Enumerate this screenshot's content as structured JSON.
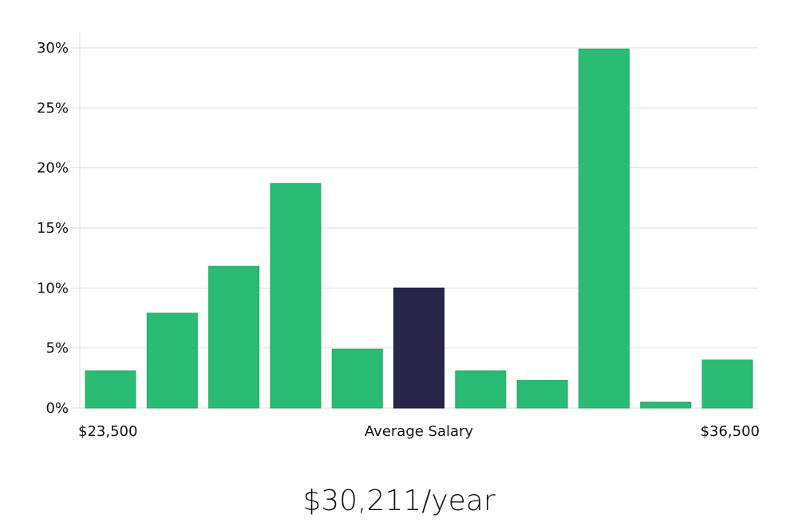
{
  "chart_data": {
    "type": "bar",
    "title": "",
    "xlabel": "Average Salary",
    "ylabel": "",
    "x_range_labels": {
      "min": "$23,500",
      "max": "$36,500"
    },
    "ylim": [
      0,
      30
    ],
    "yticks": [
      0,
      5,
      10,
      15,
      20,
      25,
      30
    ],
    "ytick_labels": [
      "0%",
      "5%",
      "10%",
      "15%",
      "20%",
      "25%",
      "30%"
    ],
    "grid": true,
    "values": [
      3.1,
      7.9,
      11.8,
      18.7,
      4.9,
      10.0,
      3.1,
      2.3,
      29.9,
      0.5,
      4.0
    ],
    "highlight_index": 5,
    "colors": {
      "bar": "#2abb75",
      "highlight": "#28254a",
      "grid": "#dddddd",
      "axis": "#dddddd"
    }
  },
  "salary": {
    "value": "$30,211/year"
  }
}
